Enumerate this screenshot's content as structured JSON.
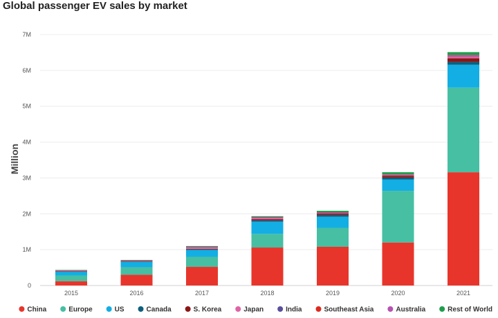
{
  "chart_data": {
    "type": "bar",
    "stacked": true,
    "title": "Global passenger EV sales by market",
    "xlabel": "",
    "ylabel": "Million",
    "ylim": [
      0,
      7000000
    ],
    "yticks": [
      {
        "value": 0,
        "label": "0"
      },
      {
        "value": 1000000,
        "label": "1M"
      },
      {
        "value": 2000000,
        "label": "2M"
      },
      {
        "value": 3000000,
        "label": "3M"
      },
      {
        "value": 4000000,
        "label": "4M"
      },
      {
        "value": 5000000,
        "label": "5M"
      },
      {
        "value": 6000000,
        "label": "6M"
      },
      {
        "value": 7000000,
        "label": "7M"
      }
    ],
    "grid": true,
    "legend_position": "bottom",
    "categories": [
      "2015",
      "2016",
      "2017",
      "2018",
      "2019",
      "2020",
      "2021"
    ],
    "series": [
      {
        "name": "China",
        "color": "#e8352b",
        "values": [
          120000,
          300000,
          520000,
          1060000,
          1080000,
          1200000,
          3160000
        ]
      },
      {
        "name": "Europe",
        "color": "#46bfa3",
        "values": [
          160000,
          210000,
          280000,
          380000,
          530000,
          1440000,
          2360000
        ]
      },
      {
        "name": "US",
        "color": "#13aee3",
        "values": [
          110000,
          150000,
          190000,
          340000,
          310000,
          320000,
          640000
        ]
      },
      {
        "name": "Canada",
        "color": "#0e5f7c",
        "values": [
          5000,
          10000,
          20000,
          40000,
          50000,
          50000,
          80000
        ]
      },
      {
        "name": "S. Korea",
        "color": "#8c1616",
        "values": [
          5000,
          10000,
          15000,
          30000,
          40000,
          50000,
          100000
        ]
      },
      {
        "name": "Japan",
        "color": "#de64a6",
        "values": [
          25000,
          20000,
          50000,
          50000,
          20000,
          20000,
          50000
        ]
      },
      {
        "name": "India",
        "color": "#5a4f9c",
        "values": [
          1000,
          1000,
          2000,
          3000,
          3000,
          5000,
          10000
        ]
      },
      {
        "name": "Southeast Asia",
        "color": "#dd2a20",
        "values": [
          1000,
          1000,
          2000,
          3000,
          5000,
          5000,
          10000
        ]
      },
      {
        "name": "Australia",
        "color": "#b652b0",
        "values": [
          1000,
          1000,
          2000,
          2000,
          6000,
          10000,
          20000
        ]
      },
      {
        "name": "Rest of World",
        "color": "#1e9e4c",
        "values": [
          5000,
          10000,
          20000,
          25000,
          40000,
          60000,
          80000
        ]
      }
    ]
  }
}
